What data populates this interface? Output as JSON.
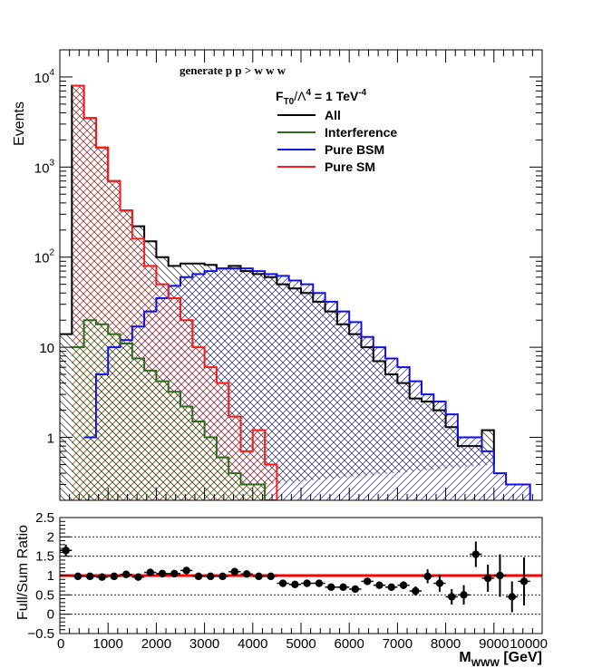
{
  "colors": {
    "all": "#000000",
    "interference": "#2e6b1f",
    "bsm": "#1010e0",
    "sm": "#ff1a1a",
    "ratio_line": "#ff0000"
  },
  "process_label": "generate p p > w w w",
  "legend_title_main": "F",
  "legend_title_sub": "T0",
  "legend_title_mid": "/Λ",
  "legend_title_sup": "4",
  "legend_title_rest": " = 1 TeV",
  "legend_title_sup2": "-4",
  "chart_data": [
    {
      "type": "histogram",
      "ylabel": "Events",
      "yscale": "log",
      "ylim": [
        0.2,
        20000
      ],
      "xlim": [
        0,
        10000
      ],
      "bin_width": 250,
      "y_ticks": [
        {
          "label_base": "10",
          "label_exp": "4",
          "value": 10000
        },
        {
          "label_base": "10",
          "label_exp": "3",
          "value": 1000
        },
        {
          "label_base": "10",
          "label_exp": "2",
          "value": 100
        },
        {
          "label_base": "10",
          "label_exp": "",
          "value": 10
        },
        {
          "label_base": "1",
          "label_exp": "",
          "value": 1
        }
      ],
      "series": [
        {
          "name": "All",
          "key": "all",
          "edges": [
            0,
            250,
            500,
            750,
            1000,
            1250,
            1500,
            1750,
            2000,
            2250,
            2500,
            2750,
            3000,
            3250,
            3500,
            3750,
            4000,
            4250,
            4500,
            4750,
            5000,
            5250,
            5500,
            5750,
            6000,
            6250,
            6500,
            6750,
            7000,
            7250,
            7500,
            7750,
            8000,
            8250,
            8500,
            8750,
            9000
          ],
          "values": [
            14,
            8000,
            3500,
            1650,
            700,
            330,
            220,
            150,
            100,
            80,
            85,
            85,
            82,
            75,
            80,
            70,
            65,
            60,
            50,
            45,
            40,
            32,
            25,
            18,
            14,
            10,
            7,
            5,
            4,
            2.7,
            2.5,
            2,
            1.3,
            0.8,
            0.8,
            1.2,
            0.5
          ]
        },
        {
          "name": "Interference",
          "key": "interference",
          "edges": [
            250,
            500,
            750,
            1000,
            1250,
            1500,
            1750,
            2000,
            2250,
            2500,
            2750,
            3000,
            3250,
            3500,
            3750,
            4000,
            4250,
            4500
          ],
          "values": [
            10,
            20,
            18,
            14,
            11,
            7.5,
            5.5,
            4.2,
            3.2,
            2.2,
            1.5,
            1.0,
            0.6,
            0.4,
            0.3,
            0.3,
            0.2
          ]
        },
        {
          "name": "Pure BSM",
          "key": "bsm",
          "edges": [
            500,
            750,
            1000,
            1250,
            1500,
            1750,
            2000,
            2250,
            2500,
            2750,
            3000,
            3250,
            3500,
            3750,
            4000,
            4250,
            4500,
            4750,
            5000,
            5250,
            5500,
            5750,
            6000,
            6250,
            6500,
            6750,
            7000,
            7250,
            7500,
            7750,
            8000,
            8250,
            8500,
            8750,
            9000,
            9250,
            9500,
            9750
          ],
          "values": [
            1,
            5,
            10,
            12,
            17,
            25,
            35,
            48,
            60,
            65,
            70,
            75,
            75,
            75,
            70,
            65,
            62,
            55,
            50,
            40,
            32,
            25,
            19,
            13,
            10,
            7.5,
            6,
            4.2,
            3,
            2.5,
            1.8,
            1,
            1,
            0.7,
            0.4,
            0.3,
            0.3
          ]
        },
        {
          "name": "Pure SM",
          "key": "sm",
          "edges": [
            250,
            500,
            750,
            1000,
            1250,
            1500,
            1750,
            2000,
            2250,
            2500,
            2750,
            3000,
            3250,
            3500,
            3750,
            4000,
            4250,
            4500
          ],
          "values": [
            8000,
            3500,
            1650,
            700,
            330,
            160,
            80,
            50,
            35,
            20,
            10,
            6,
            4,
            1.7,
            0.7,
            1.2,
            0.5
          ]
        }
      ]
    },
    {
      "type": "scatter",
      "ylabel": "Full/Sum Ratio",
      "xlabel_main": "M",
      "xlabel_sub": "WWW",
      "xlabel_rest": " [GeV]",
      "ylim": [
        -0.5,
        2.5
      ],
      "xlim": [
        0,
        10000
      ],
      "x_ticks": [
        "0",
        "1000",
        "2000",
        "3000",
        "4000",
        "5000",
        "6000",
        "7000",
        "8000",
        "9000",
        "10000"
      ],
      "y_ticks": [
        "−0.5",
        "0",
        "0.5",
        "1",
        "1.5",
        "2",
        "2.5"
      ],
      "y_tick_values": [
        -0.5,
        0,
        0.5,
        1,
        1.5,
        2,
        2.5
      ],
      "reference_line": 1,
      "x": [
        125,
        375,
        625,
        875,
        1125,
        1375,
        1625,
        1875,
        2125,
        2375,
        2625,
        2875,
        3125,
        3375,
        3625,
        3875,
        4125,
        4375,
        4625,
        4875,
        5125,
        5375,
        5625,
        5875,
        6125,
        6375,
        6625,
        6875,
        7125,
        7375,
        7625,
        7875,
        8125,
        8375,
        8625,
        8875,
        9125,
        9375,
        9625
      ],
      "values": [
        1.65,
        0.98,
        0.98,
        0.96,
        0.98,
        1.03,
        0.96,
        1.08,
        1.05,
        1.05,
        1.13,
        0.98,
        0.98,
        0.98,
        1.1,
        1.04,
        0.98,
        0.98,
        0.8,
        0.77,
        0.8,
        0.8,
        0.7,
        0.7,
        0.65,
        0.85,
        0.75,
        0.7,
        0.75,
        0.6,
        0.98,
        0.8,
        0.45,
        0.5,
        1.55,
        0.93,
        1.0,
        0.45,
        0.85
      ],
      "errors": [
        0.15,
        0.02,
        0.02,
        0.02,
        0.02,
        0.03,
        0.03,
        0.04,
        0.04,
        0.04,
        0.05,
        0.05,
        0.05,
        0.05,
        0.05,
        0.05,
        0.05,
        0.05,
        0.05,
        0.05,
        0.05,
        0.05,
        0.05,
        0.06,
        0.06,
        0.07,
        0.08,
        0.09,
        0.1,
        0.12,
        0.18,
        0.22,
        0.2,
        0.25,
        0.33,
        0.35,
        0.55,
        0.4,
        0.62
      ]
    }
  ]
}
